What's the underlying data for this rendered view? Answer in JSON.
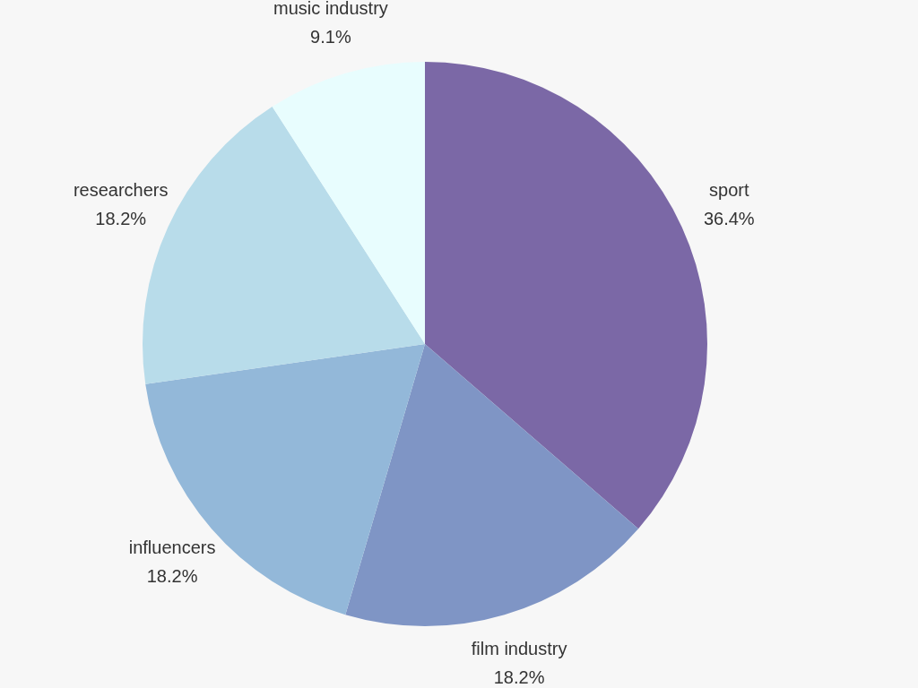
{
  "chart_data": {
    "type": "pie",
    "categories": [
      "sport",
      "film industry",
      "influencers",
      "researchers",
      "music industry"
    ],
    "values": [
      36.4,
      18.2,
      18.2,
      18.2,
      9.1
    ],
    "value_labels": [
      "36.4%",
      "18.2%",
      "18.2%",
      "18.2%",
      "9.1%"
    ],
    "colors": [
      "#7b68a6",
      "#7f95c5",
      "#93b8d9",
      "#b8dcea",
      "#e8fdfe"
    ],
    "data_labels": true
  }
}
